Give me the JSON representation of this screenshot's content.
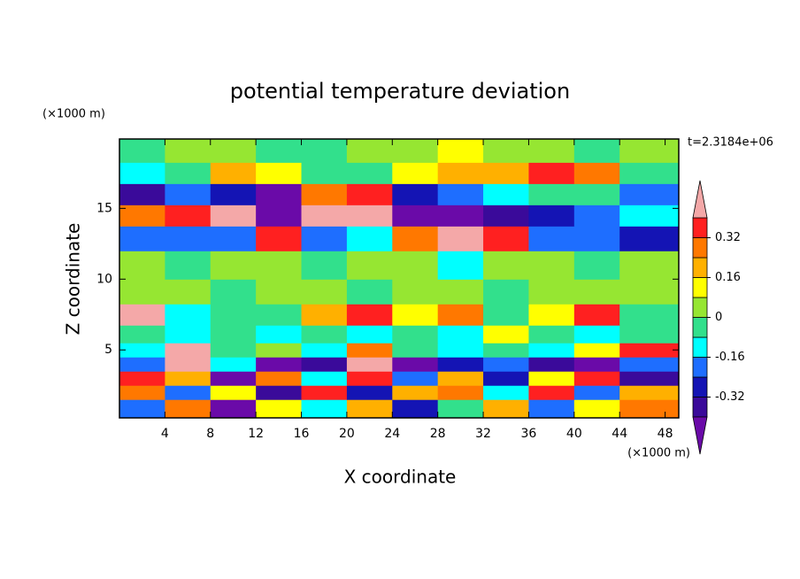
{
  "chart_data": {
    "type": "contour",
    "title": "potential temperature deviation",
    "xlabel": "X coordinate",
    "ylabel": "Z coordinate",
    "x_unit": "(×1000 m)",
    "y_unit": "(×1000 m)",
    "annotation": "t=2.3184e+06",
    "xlim": [
      0,
      49.2
    ],
    "ylim": [
      0.2,
      19.9
    ],
    "xticks": [
      4,
      8,
      12,
      16,
      20,
      24,
      28,
      32,
      36,
      40,
      44,
      48
    ],
    "yticks": [
      5,
      10,
      15
    ],
    "x": [
      2,
      6,
      10,
      14,
      18,
      22,
      26,
      30,
      34,
      38,
      42,
      46
    ],
    "z": [
      1,
      2,
      3,
      4,
      5,
      6,
      7.5,
      9,
      11,
      13,
      14.5,
      16,
      17.5,
      19
    ],
    "values": [
      [
        -0.2,
        0.28,
        -0.45,
        0.12,
        -0.12,
        0.2,
        -0.28,
        -0.04,
        0.2,
        -0.2,
        0.12,
        0.28
      ],
      [
        0.28,
        -0.2,
        0.12,
        -0.36,
        0.35,
        -0.28,
        0.2,
        0.28,
        -0.12,
        0.35,
        -0.2,
        0.2
      ],
      [
        0.35,
        0.2,
        -0.45,
        0.28,
        -0.12,
        0.35,
        -0.2,
        0.2,
        -0.28,
        0.12,
        0.35,
        -0.36
      ],
      [
        -0.2,
        0.45,
        -0.12,
        -0.45,
        -0.36,
        0.45,
        -0.45,
        -0.28,
        -0.2,
        -0.36,
        -0.45,
        -0.2
      ],
      [
        -0.12,
        0.45,
        -0.04,
        0.04,
        -0.12,
        0.28,
        -0.04,
        -0.12,
        -0.04,
        -0.12,
        0.12,
        0.35
      ],
      [
        -0.04,
        -0.12,
        -0.04,
        -0.12,
        -0.04,
        -0.12,
        -0.04,
        -0.12,
        0.12,
        -0.04,
        -0.12,
        -0.04
      ],
      [
        0.45,
        -0.12,
        -0.04,
        -0.04,
        0.2,
        0.35,
        0.12,
        0.28,
        -0.04,
        0.12,
        0.35,
        -0.04
      ],
      [
        0.04,
        0.04,
        -0.04,
        0.04,
        0.04,
        -0.04,
        0.04,
        0.04,
        -0.04,
        0.04,
        0.04,
        0.04
      ],
      [
        0.04,
        -0.04,
        0.04,
        0.04,
        -0.04,
        0.04,
        0.04,
        -0.12,
        0.04,
        0.04,
        -0.04,
        0.04
      ],
      [
        -0.2,
        -0.2,
        -0.2,
        0.35,
        -0.2,
        -0.12,
        0.28,
        0.45,
        0.35,
        -0.2,
        -0.2,
        -0.28
      ],
      [
        0.28,
        0.35,
        0.45,
        -0.45,
        0.45,
        0.45,
        -0.45,
        -0.45,
        -0.36,
        -0.28,
        -0.2,
        -0.12
      ],
      [
        -0.36,
        -0.2,
        -0.28,
        -0.45,
        0.28,
        0.35,
        -0.28,
        -0.2,
        -0.12,
        -0.04,
        -0.04,
        -0.2
      ],
      [
        -0.12,
        -0.04,
        0.2,
        0.12,
        -0.04,
        -0.04,
        0.12,
        0.2,
        0.2,
        0.35,
        0.28,
        -0.04
      ],
      [
        -0.04,
        0.04,
        0.04,
        -0.04,
        -0.04,
        0.04,
        0.04,
        0.12,
        0.04,
        0.04,
        -0.04,
        0.04
      ]
    ],
    "levels": [
      -0.4,
      -0.32,
      -0.24,
      -0.16,
      -0.08,
      0,
      0.08,
      0.16,
      0.24,
      0.32,
      0.4
    ],
    "colors": [
      "#6a0aa8",
      "#3a0a9a",
      "#1414b4",
      "#1e6eff",
      "#00ffff",
      "#32e08c",
      "#96e632",
      "#ffff00",
      "#ffb000",
      "#ff7800",
      "#ff2020",
      "#f4a8a8"
    ],
    "colorbar_ticks": [
      -0.32,
      -0.16,
      0,
      0.16,
      0.32
    ]
  }
}
